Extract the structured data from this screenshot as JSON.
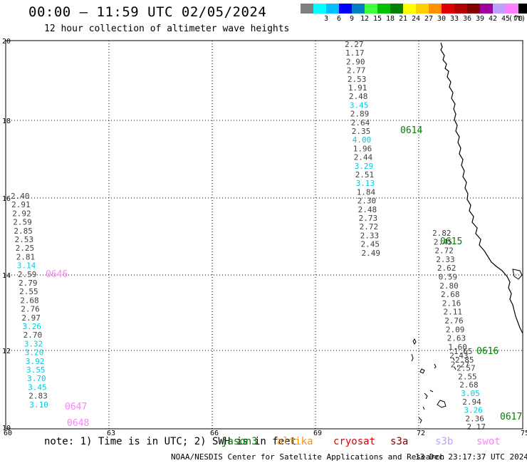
{
  "header": {
    "title": "00:00 – 11:59 UTC 02/05/2024",
    "subtitle": "12 hour collection of altimeter wave heights"
  },
  "colorbar": {
    "unit": "(ft)",
    "swatches": [
      {
        "color": "#808080",
        "label": ""
      },
      {
        "color": "#00ffff",
        "label": "3"
      },
      {
        "color": "#00bfff",
        "label": "6"
      },
      {
        "color": "#0000ff",
        "label": "9"
      },
      {
        "color": "#0080c0",
        "label": "12"
      },
      {
        "color": "#40ff40",
        "label": "15"
      },
      {
        "color": "#00c000",
        "label": "18"
      },
      {
        "color": "#008000",
        "label": "21"
      },
      {
        "color": "#ffff00",
        "label": "24"
      },
      {
        "color": "#ffd000",
        "label": "27"
      },
      {
        "color": "#ff9000",
        "label": "30"
      },
      {
        "color": "#e00000",
        "label": "33"
      },
      {
        "color": "#b00000",
        "label": "36"
      },
      {
        "color": "#800000",
        "label": "39"
      },
      {
        "color": "#a000a0",
        "label": "42"
      },
      {
        "color": "#c0a0ff",
        "label": "45"
      },
      {
        "color": "#ff80ff",
        "label": "70"
      },
      {
        "color": "#000000",
        "label": ""
      }
    ]
  },
  "axes": {
    "lat_ticks": [
      "20",
      "18",
      "16",
      "14",
      "12",
      "10"
    ],
    "lon_ticks": [
      "60",
      "63",
      "66",
      "69",
      "72",
      "75"
    ]
  },
  "tracks": [
    {
      "id": "0614",
      "color": "#008000",
      "labels": [
        "2.27",
        "1.17",
        "2.90",
        "2.77",
        "2.53",
        "1.91",
        "2.48",
        "3.45",
        "2.89",
        "2.64",
        "2.35",
        "4.00",
        "1.96",
        "2.44",
        "3.29",
        "2.51",
        "3.13",
        "1.84",
        "2.30",
        "2.48",
        "2.73",
        "2.72",
        "2.33",
        "2.45",
        "2.49"
      ],
      "cyan": [
        7,
        11,
        14,
        16
      ]
    },
    {
      "id": "0615",
      "color": "#008000",
      "labels": [
        "2.82",
        "2.45",
        "2.72",
        "2.33",
        "2.62",
        "0.59",
        "2.80",
        "2.68",
        "2.16",
        "2.11",
        "2.76",
        "2.09",
        "2.63",
        "1.60",
        "2.43",
        "2.27"
      ],
      "cyan": []
    },
    {
      "id": "0616",
      "color": "#008000",
      "labels": [
        "1.65",
        "2.85",
        "2.57",
        "2.55",
        "2.68",
        "3.05",
        "2.94",
        "3.26",
        "2.36",
        "2.17"
      ],
      "cyan": [
        5,
        7
      ]
    },
    {
      "id": "0617",
      "color": "#008000",
      "labels": [],
      "cyan": []
    },
    {
      "id": "0646",
      "color": "#ff80ff",
      "labels": [
        "2.40",
        "2.91",
        "2.92",
        "2.59",
        "2.85",
        "2.53",
        "2.25",
        "2.81",
        "3.14",
        "2.59",
        "2.79",
        "2.55",
        "2.68",
        "2.76",
        "2.97",
        "3.26",
        "2.70",
        "3.32",
        "3.20",
        "3.92",
        "3.55",
        "3.70",
        "3.45",
        "2.83",
        "3.10"
      ],
      "cyan": [
        8,
        15,
        17,
        18,
        19,
        20,
        21,
        22,
        24
      ]
    },
    {
      "id": "0647",
      "color": "#ff80ff",
      "labels": [],
      "cyan": []
    },
    {
      "id": "0648",
      "color": "#ff80ff",
      "labels": [],
      "cyan": []
    }
  ],
  "note": {
    "text": "note: 1) Time is in UTC; 2) SWH is in feet",
    "satellites": [
      {
        "name": "jason3",
        "color": "#008000"
      },
      {
        "name": "altika",
        "color": "#ff9000"
      },
      {
        "name": "cryosat",
        "color": "#e00000"
      },
      {
        "name": "s3a",
        "color": "#800000"
      },
      {
        "name": "s3b",
        "color": "#c0a0ff"
      },
      {
        "name": "swot",
        "color": "#ff80ff"
      }
    ]
  },
  "footer": {
    "credit": "NOAA/NESDIS Center for Satellite Applications and Research",
    "timestamp": "13 Dec 23:17:37 UTC 2024"
  }
}
